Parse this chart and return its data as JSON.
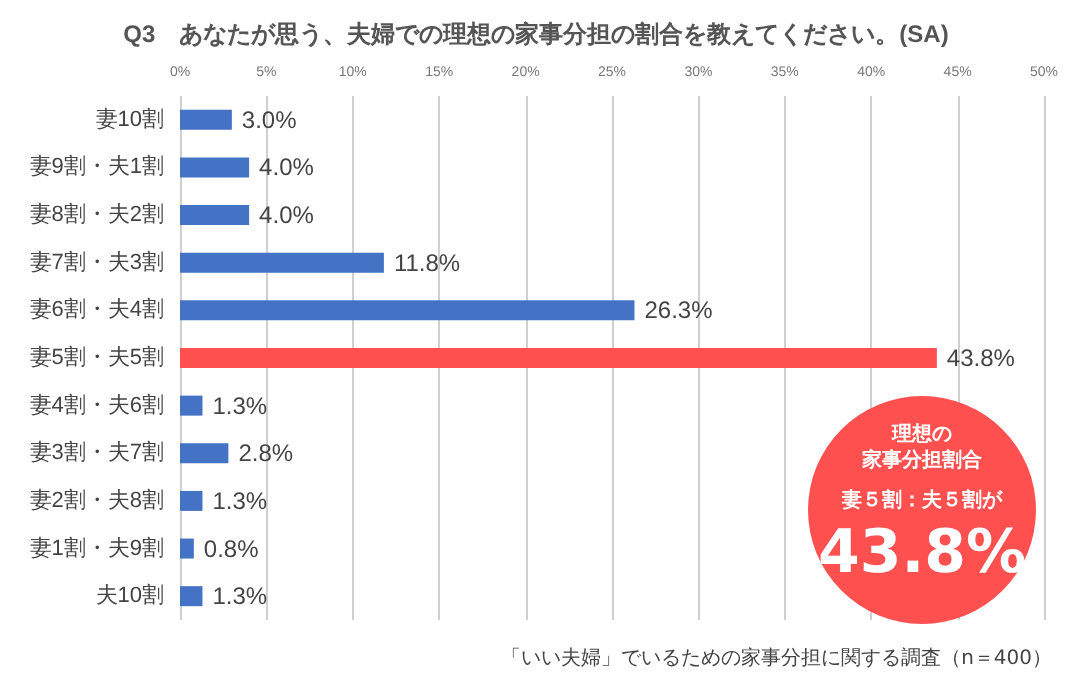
{
  "chart_data": {
    "type": "bar",
    "orientation": "horizontal",
    "title": "Q3　あなたが思う、夫婦での理想の家事分担の割合を教えてください。(SA)",
    "categories": [
      "妻10割",
      "妻9割・夫1割",
      "妻8割・夫2割",
      "妻7割・夫3割",
      "妻6割・夫4割",
      "妻5割・夫5割",
      "妻4割・夫6割",
      "妻3割・夫7割",
      "妻2割・夫8割",
      "妻1割・夫9割",
      "夫10割"
    ],
    "values": [
      3.0,
      4.0,
      4.0,
      11.8,
      26.3,
      43.8,
      1.3,
      2.8,
      1.3,
      0.8,
      1.3
    ],
    "value_labels": [
      "3.0%",
      "4.0%",
      "4.0%",
      "11.8%",
      "26.3%",
      "43.8%",
      "1.3%",
      "2.8%",
      "1.3%",
      "0.8%",
      "1.3%"
    ],
    "colors": [
      "#4472c4",
      "#4472c4",
      "#4472c4",
      "#4472c4",
      "#4472c4",
      "#ff5050",
      "#4472c4",
      "#4472c4",
      "#4472c4",
      "#4472c4",
      "#4472c4"
    ],
    "xlim": [
      0,
      50
    ],
    "xticks": [
      {
        "value": 0,
        "label": "0%"
      },
      {
        "value": 5,
        "label": "5%"
      },
      {
        "value": 10,
        "label": "10%"
      },
      {
        "value": 15,
        "label": "15%"
      },
      {
        "value": 20,
        "label": "20%"
      },
      {
        "value": 25,
        "label": "25%"
      },
      {
        "value": 30,
        "label": "30%"
      },
      {
        "value": 35,
        "label": "35%"
      },
      {
        "value": 40,
        "label": "40%"
      },
      {
        "value": 45,
        "label": "45%"
      },
      {
        "value": 50,
        "label": "50%"
      }
    ],
    "grid": "x",
    "annotations": [
      "理想の",
      "家事分担割合",
      "妻５割：夫５割が",
      "43.8%",
      "「いい夫婦」でいるための家事分担に関する調査（n＝400）"
    ]
  }
}
